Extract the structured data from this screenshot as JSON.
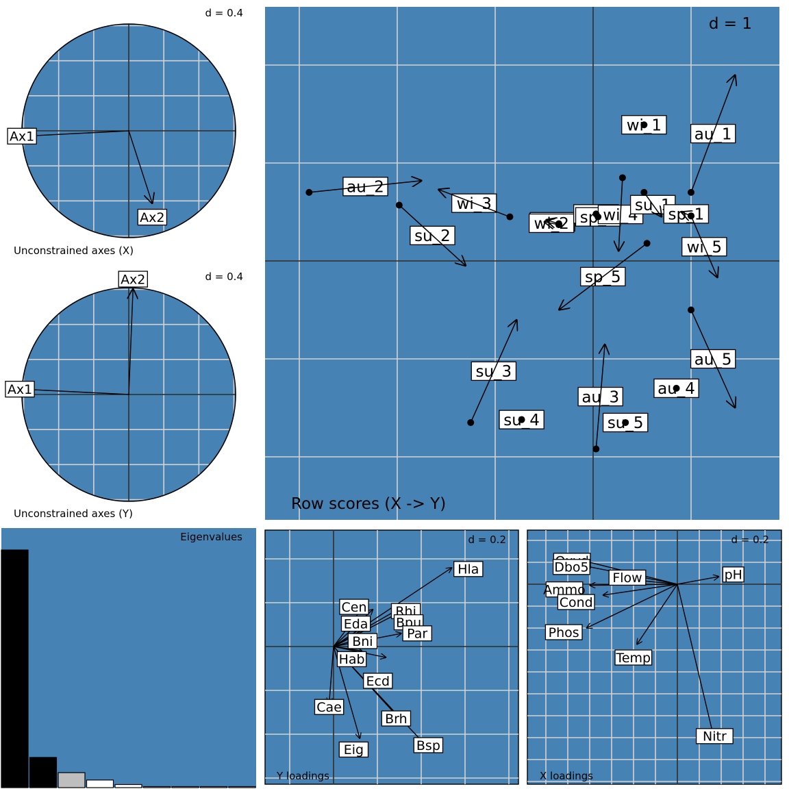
{
  "colors": {
    "panel_bg": "#4682b4",
    "grid": "#d3d3d3",
    "label_bg": "#ffffff",
    "ink": "#000000"
  },
  "panels": {
    "x_axes": {
      "d_label": "d = 0.4",
      "caption": "Unconstrained axes (X)"
    },
    "y_axes": {
      "d_label": "d = 0.4",
      "caption": "Unconstrained axes (Y)"
    },
    "row_scores": {
      "d_label": "d = 1",
      "caption": "Row scores (X -> Y)"
    },
    "eigen": {
      "caption": "Eigenvalues"
    },
    "y_loadings": {
      "d_label": "d = 0.2",
      "caption": "Y loadings"
    },
    "x_loadings": {
      "d_label": "d = 0.2",
      "caption": "X loadings"
    }
  },
  "chart_data": [
    {
      "id": "x_axes",
      "type": "scatter",
      "title": "Unconstrained axes (X)",
      "grid": true,
      "grid_step": 0.4,
      "xlim": [
        -1,
        1
      ],
      "arrows": [
        {
          "label": "Ax1",
          "x": -0.98,
          "y": -0.05
        },
        {
          "label": "Ax2",
          "x": 0.22,
          "y": -0.68
        }
      ]
    },
    {
      "id": "y_axes",
      "type": "scatter",
      "title": "Unconstrained axes (Y)",
      "grid": true,
      "grid_step": 0.4,
      "xlim": [
        -1,
        1
      ],
      "arrows": [
        {
          "label": "Ax1",
          "x": -1.0,
          "y": 0.05
        },
        {
          "label": "Ax2",
          "x": 0.04,
          "y": 0.99
        }
      ]
    },
    {
      "id": "row_scores",
      "type": "scatter",
      "title": "Row scores (X -> Y)",
      "grid": true,
      "grid_step": 1,
      "xlim": [
        -3.35,
        1.9
      ],
      "ylim": [
        -2.6,
        2.6
      ],
      "points": [
        {
          "label": "wi_1",
          "x": 0.52,
          "y": 1.39,
          "tx": 0.52,
          "ty": 1.39
        },
        {
          "label": "au_1",
          "x": 1.0,
          "y": 0.7,
          "tx": 1.45,
          "ty": 1.9
        },
        {
          "label": "au_2",
          "x": -2.9,
          "y": 0.7,
          "tx": -1.75,
          "ty": 0.82
        },
        {
          "label": "su_2",
          "x": -1.98,
          "y": 0.57,
          "tx": -1.3,
          "ty": -0.05
        },
        {
          "label": "wi_3",
          "x": -0.85,
          "y": 0.45,
          "tx": -1.58,
          "ty": 0.73
        },
        {
          "label": "sp_2",
          "x": -0.35,
          "y": 0.38,
          "tx": -0.48,
          "ty": 0.42
        },
        {
          "label": "wi_2",
          "x": -0.35,
          "y": 0.37,
          "tx": -0.5,
          "ty": 0.4
        },
        {
          "label": "sp_4",
          "x": 0.03,
          "y": 0.48,
          "tx": 0.03,
          "ty": 0.48
        },
        {
          "label": "sp_3",
          "x": 0.05,
          "y": 0.45,
          "tx": 0.05,
          "ty": 0.45
        },
        {
          "label": "wi_4",
          "x": 0.3,
          "y": 0.85,
          "tx": 0.26,
          "ty": 0.1
        },
        {
          "label": "su_1",
          "x": 0.52,
          "y": 0.7,
          "tx": 0.7,
          "ty": 0.45
        },
        {
          "label": "sp_1",
          "x": 1.0,
          "y": 0.46,
          "tx": 0.9,
          "ty": 0.5
        },
        {
          "label": "wi_5",
          "x": 1.0,
          "y": 0.46,
          "tx": 1.27,
          "ty": -0.17
        },
        {
          "label": "sp_5",
          "x": 0.55,
          "y": 0.18,
          "tx": -0.35,
          "ty": -0.5
        },
        {
          "label": "su_3",
          "x": -1.25,
          "y": -1.65,
          "tx": -0.78,
          "ty": -0.6
        },
        {
          "label": "au_5",
          "x": 1.0,
          "y": -0.5,
          "tx": 1.45,
          "ty": -1.5
        },
        {
          "label": "au_3",
          "x": 0.03,
          "y": -1.92,
          "tx": 0.12,
          "ty": -0.85
        },
        {
          "label": "su_5",
          "x": 0.33,
          "y": -1.65,
          "tx": 0.33,
          "ty": -1.65
        },
        {
          "label": "su_4",
          "x": -0.73,
          "y": -1.62,
          "tx": -0.73,
          "ty": -1.62
        },
        {
          "label": "au_4",
          "x": 0.85,
          "y": -1.3,
          "tx": 0.85,
          "ty": -1.3
        }
      ]
    },
    {
      "id": "eigen",
      "type": "bar",
      "title": "Eigenvalues",
      "values": [
        1.0,
        0.127,
        0.063,
        0.032,
        0.013,
        0.004,
        0.003,
        0.002,
        0.001
      ],
      "fills": [
        "#000000",
        "#000000",
        "#bebebe",
        "#ffffff",
        "#ffffff",
        "#ffffff",
        "#ffffff",
        "#ffffff",
        "#ffffff"
      ]
    },
    {
      "id": "y_loadings",
      "type": "scatter",
      "title": "Y loadings",
      "grid": true,
      "grid_step": 0.2,
      "xlim": [
        -0.32,
        0.84
      ],
      "ylim": [
        -0.6,
        0.35
      ],
      "arrows": [
        {
          "label": "Hla",
          "x": 0.54,
          "y": 0.36
        },
        {
          "label": "Cen",
          "x": 0.15,
          "y": 0.2
        },
        {
          "label": "Eda",
          "x": 0.18,
          "y": 0.17
        },
        {
          "label": "Rhi",
          "x": 0.33,
          "y": 0.19
        },
        {
          "label": "Bpu",
          "x": 0.33,
          "y": 0.17
        },
        {
          "label": "Bni",
          "x": 0.17,
          "y": 0.05
        },
        {
          "label": "Par",
          "x": 0.31,
          "y": 0.06
        },
        {
          "label": "Hab",
          "x": 0.13,
          "y": -0.02
        },
        {
          "label": "Ecd",
          "x": 0.24,
          "y": -0.05
        },
        {
          "label": "Cae",
          "x": -0.02,
          "y": -0.26
        },
        {
          "label": "Eig",
          "x": 0.12,
          "y": -0.42
        },
        {
          "label": "Brh",
          "x": 0.32,
          "y": -0.35
        },
        {
          "label": "Bsp",
          "x": 0.42,
          "y": -0.45
        }
      ]
    },
    {
      "id": "x_loadings",
      "type": "scatter",
      "title": "X loadings",
      "grid": true,
      "grid_step": 0.2,
      "xlim": [
        -1.3,
        0.95
      ],
      "ylim": [
        -1.45,
        0.45
      ],
      "arrows": [
        {
          "label": "pH",
          "x": 0.38,
          "y": 0.07
        },
        {
          "label": "Oxyd",
          "x": -0.88,
          "y": 0.22
        },
        {
          "label": "Dbo5",
          "x": -0.86,
          "y": 0.17
        },
        {
          "label": "Flow",
          "x": -0.6,
          "y": 0.06
        },
        {
          "label": "Ammo",
          "x": -0.8,
          "y": -0.01
        },
        {
          "label": "Cond",
          "x": -0.68,
          "y": -0.1
        },
        {
          "label": "Phos",
          "x": -0.83,
          "y": -0.4
        },
        {
          "label": "Temp",
          "x": -0.37,
          "y": -0.55
        },
        {
          "label": "Nitr",
          "x": 0.34,
          "y": -1.43
        }
      ]
    }
  ]
}
